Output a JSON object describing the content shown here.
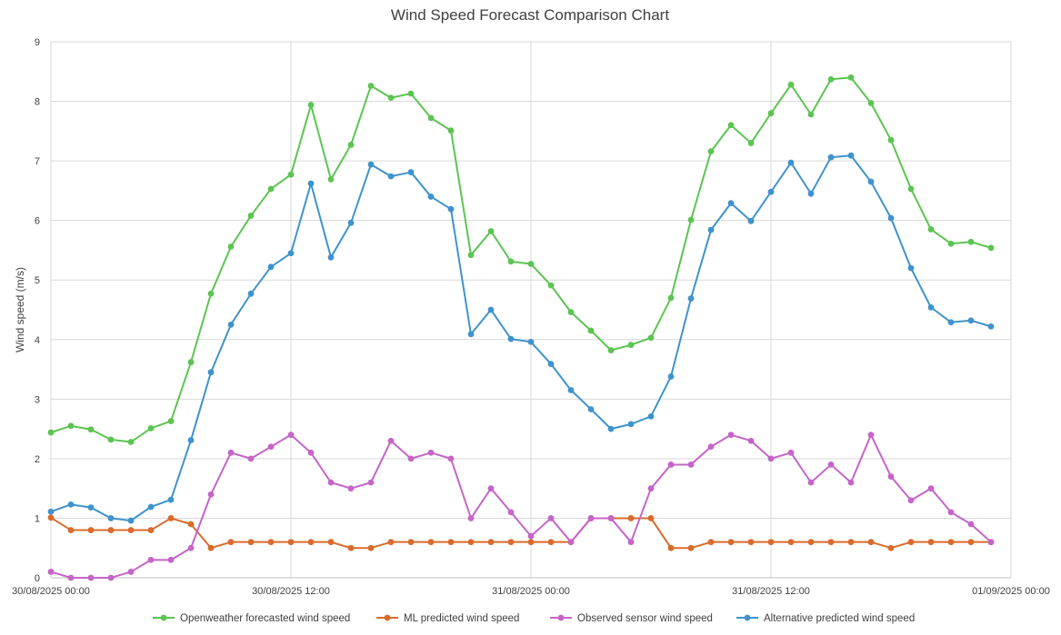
{
  "chart_data": {
    "type": "line",
    "title": "Wind Speed Forecast Comparison Chart",
    "xlabel": "",
    "ylabel": "Wind speed (m/s)",
    "ylim": [
      0,
      9
    ],
    "yticks": [
      "0",
      "1",
      "2",
      "3",
      "4",
      "5",
      "6",
      "7",
      "8",
      "9"
    ],
    "xlim": [
      0,
      48
    ],
    "xticks": [
      {
        "pos": 0,
        "label": "30/08/2025 00:00"
      },
      {
        "pos": 12,
        "label": "30/08/2025 12:00"
      },
      {
        "pos": 24,
        "label": "31/08/2025 00:00"
      },
      {
        "pos": 36,
        "label": "31/08/2025 12:00"
      },
      {
        "pos": 48,
        "label": "01/09/2025 00:00"
      }
    ],
    "grid": true,
    "legend_position": "bottom",
    "x": [
      0,
      1,
      2,
      3,
      4,
      5,
      6,
      7,
      8,
      9,
      10,
      11,
      12,
      13,
      14,
      15,
      16,
      17,
      18,
      19,
      20,
      21,
      22,
      23,
      24,
      25,
      26,
      27,
      28,
      29,
      30,
      31,
      32,
      33,
      34,
      35,
      36,
      37,
      38,
      39,
      40,
      41,
      42,
      43,
      44,
      45,
      46,
      47
    ],
    "series": [
      {
        "name": "Openweather forecasted wind speed",
        "color": "#5cc452",
        "values": [
          2.44,
          2.55,
          2.49,
          2.32,
          2.28,
          2.51,
          2.63,
          3.62,
          4.77,
          5.56,
          6.08,
          6.53,
          6.77,
          7.94,
          6.69,
          7.27,
          8.26,
          8.06,
          8.13,
          7.72,
          7.51,
          5.42,
          5.82,
          5.31,
          5.27,
          4.91,
          4.46,
          4.15,
          3.82,
          3.91,
          4.03,
          4.7,
          6.01,
          7.16,
          7.6,
          7.3,
          7.8,
          8.28,
          7.78,
          8.37,
          8.4,
          7.97,
          7.35,
          6.53,
          5.85,
          5.61,
          5.64,
          5.54
        ]
      },
      {
        "name": "ML predicted wind speed",
        "color": "#d96b2b",
        "values": [
          1.01,
          0.8,
          0.8,
          0.8,
          0.8,
          0.8,
          1.0,
          0.9,
          0.5,
          0.6,
          0.6,
          0.6,
          0.6,
          0.6,
          0.6,
          0.5,
          0.5,
          0.6,
          0.6,
          0.6,
          0.6,
          0.6,
          0.6,
          0.6,
          0.6,
          0.6,
          0.6,
          1.0,
          1.0,
          1.0,
          1.0,
          0.5,
          0.5,
          0.6,
          0.6,
          0.6,
          0.6,
          0.6,
          0.6,
          0.6,
          0.6,
          0.6,
          0.5,
          0.6,
          0.6,
          0.6,
          0.6,
          0.6
        ]
      },
      {
        "name": "Observed sensor wind speed",
        "color": "#c565c8",
        "values": [
          0.1,
          0.0,
          0.0,
          0.0,
          0.1,
          0.3,
          0.3,
          0.5,
          1.4,
          2.1,
          2.0,
          2.2,
          2.4,
          2.1,
          1.6,
          1.5,
          1.6,
          2.3,
          2.0,
          2.1,
          2.0,
          1.0,
          1.5,
          1.1,
          0.7,
          1.0,
          0.6,
          1.0,
          1.0,
          0.6,
          1.5,
          1.9,
          1.9,
          2.2,
          2.4,
          2.3,
          2.0,
          2.1,
          1.6,
          1.9,
          1.6,
          2.4,
          1.7,
          1.3,
          1.5,
          1.1,
          0.9,
          0.6
        ]
      },
      {
        "name": "Alternative predicted wind speed",
        "color": "#3f93cc",
        "values": [
          1.11,
          1.23,
          1.18,
          1.0,
          0.96,
          1.19,
          1.31,
          2.31,
          3.45,
          4.25,
          4.77,
          5.22,
          5.45,
          6.62,
          5.38,
          5.96,
          6.94,
          6.74,
          6.81,
          6.4,
          6.19,
          4.09,
          4.5,
          4.01,
          3.96,
          3.59,
          3.15,
          2.83,
          2.5,
          2.58,
          2.71,
          3.38,
          4.69,
          5.84,
          6.29,
          5.99,
          6.48,
          6.97,
          6.45,
          7.06,
          7.09,
          6.65,
          6.04,
          5.2,
          4.54,
          4.29,
          4.32,
          4.22
        ]
      }
    ]
  }
}
